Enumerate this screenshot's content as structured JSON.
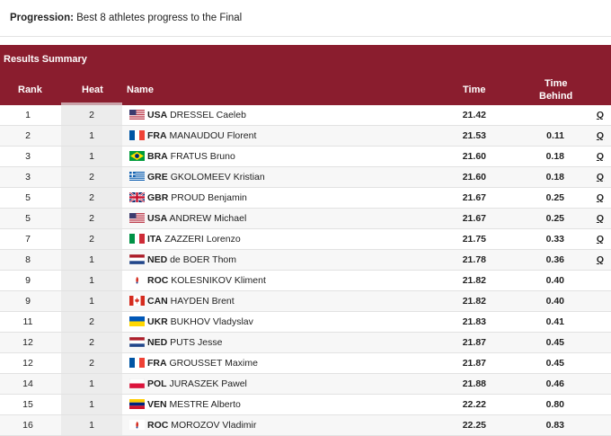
{
  "progression": {
    "label": "Progression:",
    "text": "Best 8 athletes progress to the Final"
  },
  "summary": {
    "title": "Results Summary",
    "columns": {
      "rank": "Rank",
      "heat": "Heat",
      "name": "Name",
      "time": "Time",
      "behind_1": "Time",
      "behind_2": "Behind"
    }
  },
  "colors": {
    "header_bg": "#8a1d2e",
    "heat_highlight": "#c9a2a9"
  },
  "rows": [
    {
      "rank": "1",
      "heat": "2",
      "noc": "USA",
      "name": "DRESSEL Caeleb",
      "time": "21.42",
      "behind": "",
      "q": "Q",
      "flag": "usa"
    },
    {
      "rank": "2",
      "heat": "1",
      "noc": "FRA",
      "name": "MANAUDOU Florent",
      "time": "21.53",
      "behind": "0.11",
      "q": "Q",
      "flag": "fra"
    },
    {
      "rank": "3",
      "heat": "1",
      "noc": "BRA",
      "name": "FRATUS Bruno",
      "time": "21.60",
      "behind": "0.18",
      "q": "Q",
      "flag": "bra"
    },
    {
      "rank": "3",
      "heat": "2",
      "noc": "GRE",
      "name": "GKOLOMEEV Kristian",
      "time": "21.60",
      "behind": "0.18",
      "q": "Q",
      "flag": "gre"
    },
    {
      "rank": "5",
      "heat": "2",
      "noc": "GBR",
      "name": "PROUD Benjamin",
      "time": "21.67",
      "behind": "0.25",
      "q": "Q",
      "flag": "gbr"
    },
    {
      "rank": "5",
      "heat": "2",
      "noc": "USA",
      "name": "ANDREW Michael",
      "time": "21.67",
      "behind": "0.25",
      "q": "Q",
      "flag": "usa"
    },
    {
      "rank": "7",
      "heat": "2",
      "noc": "ITA",
      "name": "ZAZZERI Lorenzo",
      "time": "21.75",
      "behind": "0.33",
      "q": "Q",
      "flag": "ita"
    },
    {
      "rank": "8",
      "heat": "1",
      "noc": "NED",
      "name": "de BOER Thom",
      "time": "21.78",
      "behind": "0.36",
      "q": "Q",
      "flag": "ned"
    },
    {
      "rank": "9",
      "heat": "1",
      "noc": "ROC",
      "name": "KOLESNIKOV Kliment",
      "time": "21.82",
      "behind": "0.40",
      "q": "",
      "flag": "roc"
    },
    {
      "rank": "9",
      "heat": "1",
      "noc": "CAN",
      "name": "HAYDEN Brent",
      "time": "21.82",
      "behind": "0.40",
      "q": "",
      "flag": "can"
    },
    {
      "rank": "11",
      "heat": "2",
      "noc": "UKR",
      "name": "BUKHOV Vladyslav",
      "time": "21.83",
      "behind": "0.41",
      "q": "",
      "flag": "ukr"
    },
    {
      "rank": "12",
      "heat": "2",
      "noc": "NED",
      "name": "PUTS Jesse",
      "time": "21.87",
      "behind": "0.45",
      "q": "",
      "flag": "ned"
    },
    {
      "rank": "12",
      "heat": "2",
      "noc": "FRA",
      "name": "GROUSSET Maxime",
      "time": "21.87",
      "behind": "0.45",
      "q": "",
      "flag": "fra"
    },
    {
      "rank": "14",
      "heat": "1",
      "noc": "POL",
      "name": "JURASZEK Pawel",
      "time": "21.88",
      "behind": "0.46",
      "q": "",
      "flag": "pol"
    },
    {
      "rank": "15",
      "heat": "1",
      "noc": "VEN",
      "name": "MESTRE Alberto",
      "time": "22.22",
      "behind": "0.80",
      "q": "",
      "flag": "ven"
    },
    {
      "rank": "16",
      "heat": "1",
      "noc": "ROC",
      "name": "MOROZOV Vladimir",
      "time": "22.25",
      "behind": "0.83",
      "q": "",
      "flag": "roc"
    }
  ]
}
